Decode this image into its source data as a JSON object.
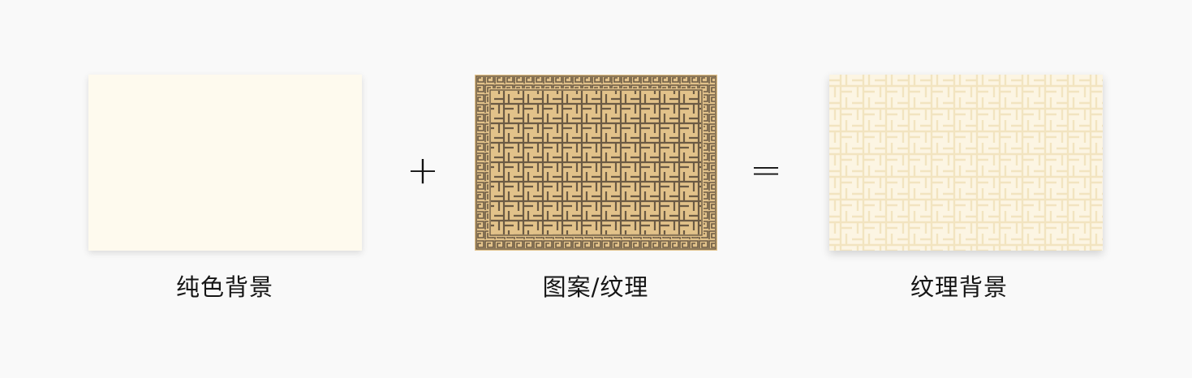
{
  "colors": {
    "background": "#f9f9f9",
    "solid_fill": "#fefaee",
    "pattern_base": "#e2c28a",
    "pattern_line": "#6b5a44",
    "textured_base": "#fcf5e3",
    "textured_line": "#f2e4c0"
  },
  "items": [
    {
      "label": "纯色背景"
    },
    {
      "label": "图案/纹理"
    },
    {
      "label": "纹理背景"
    }
  ],
  "operators": {
    "plus": "+",
    "equals": "="
  }
}
